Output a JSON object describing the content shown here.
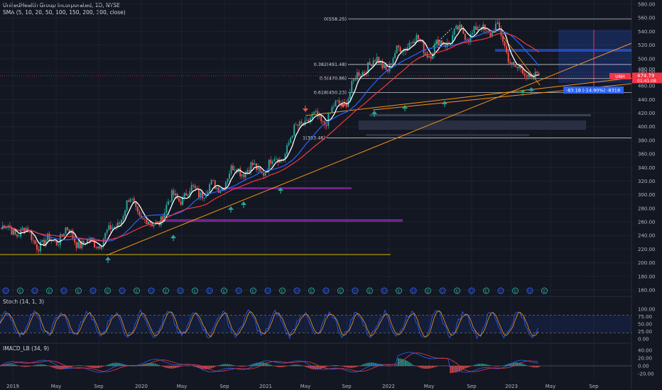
{
  "header": {
    "title": "UnitedHealth Group Incorporated, 1D, NYSE",
    "indicator": "SMA (5, 10, 20, 50, 100, 150, 200, 300, close)"
  },
  "price_axis": {
    "ticks": [
      "580.00",
      "560.00",
      "540.00",
      "520.00",
      "500.00",
      "480.00",
      "460.00",
      "440.00",
      "420.00",
      "400.00",
      "380.00",
      "360.00",
      "340.00",
      "320.00",
      "300.00",
      "280.00",
      "260.00",
      "240.00",
      "220.00",
      "200.00",
      "180.00",
      "160.00"
    ],
    "last_price_tag": {
      "symbol": "UNH",
      "price": "474.79",
      "countdown": "01:41:08",
      "level_tag": "480.00"
    },
    "measure_label": "-83.18 (-14.90%) -8318"
  },
  "fib_levels": [
    {
      "label": "0(558.25)",
      "value": 558.25
    },
    {
      "label": "0.382(491.48)",
      "value": 491.48
    },
    {
      "label": "0.5(470.86)",
      "value": 470.86
    },
    {
      "label": "0.618(450.23)",
      "value": 450.23
    },
    {
      "label": "1(383.46)",
      "value": 383.46
    }
  ],
  "stoch": {
    "title": "Stoch (14, 1, 3)",
    "ticks": [
      "100.00",
      "75.00",
      "50.00",
      "25.00",
      "0.00"
    ]
  },
  "macd": {
    "title": "IMACD_LB (34, 9)",
    "ticks": [
      "40.00",
      "20.00",
      "0.00",
      "-20.00"
    ]
  },
  "time_axis": [
    "2019",
    "May",
    "Sep",
    "2020",
    "May",
    "Sep",
    "2021",
    "May",
    "Sep",
    "2022",
    "May",
    "Sep",
    "2023",
    "May",
    "Sep"
  ],
  "events_row": [
    "D",
    "E",
    "D",
    "E",
    "D",
    "E",
    "D",
    "E",
    "D",
    "E",
    "D",
    "E",
    "D",
    "E",
    "D",
    "E",
    "D",
    "E",
    "D",
    "E",
    "D",
    "E",
    "D",
    "E",
    "D",
    "E",
    "D",
    "E",
    "D",
    "E",
    "D",
    "E",
    "D",
    "E",
    "D",
    "E",
    "D",
    "E"
  ],
  "colors": {
    "background": "#131722",
    "up": "#26a69a",
    "down": "#ef5350",
    "sma_fast": "#ffffff",
    "sma_mid": "#2962ff",
    "sma_slow": "#f23645",
    "trend": "#f7931a",
    "measure": "#2962ff"
  },
  "chart_data": {
    "type": "line",
    "title": "UnitedHealth Group Incorporated, 1D, NYSE",
    "xlabel": "",
    "ylabel": "",
    "ylim": [
      155,
      585
    ],
    "x": [
      "2019-01",
      "2019-03",
      "2019-05",
      "2019-07",
      "2019-09",
      "2019-11",
      "2020-01",
      "2020-03",
      "2020-05",
      "2020-07",
      "2020-09",
      "2020-11",
      "2021-01",
      "2021-03",
      "2021-05",
      "2021-07",
      "2021-09",
      "2021-11",
      "2022-01",
      "2022-03",
      "2022-05",
      "2022-07",
      "2022-09",
      "2022-11",
      "2023-01",
      "2023-02"
    ],
    "series": [
      {
        "name": "close",
        "values": [
          250,
          247,
          225,
          245,
          225,
          240,
          290,
          250,
          295,
          305,
          310,
          340,
          335,
          355,
          410,
          410,
          440,
          495,
          490,
          530,
          510,
          535,
          540,
          545,
          480,
          475
        ]
      }
    ],
    "annotations": [
      "0(558.25)",
      "0.382(491.48)",
      "0.5(470.86)",
      "0.618(450.23)",
      "1(383.46)"
    ]
  }
}
